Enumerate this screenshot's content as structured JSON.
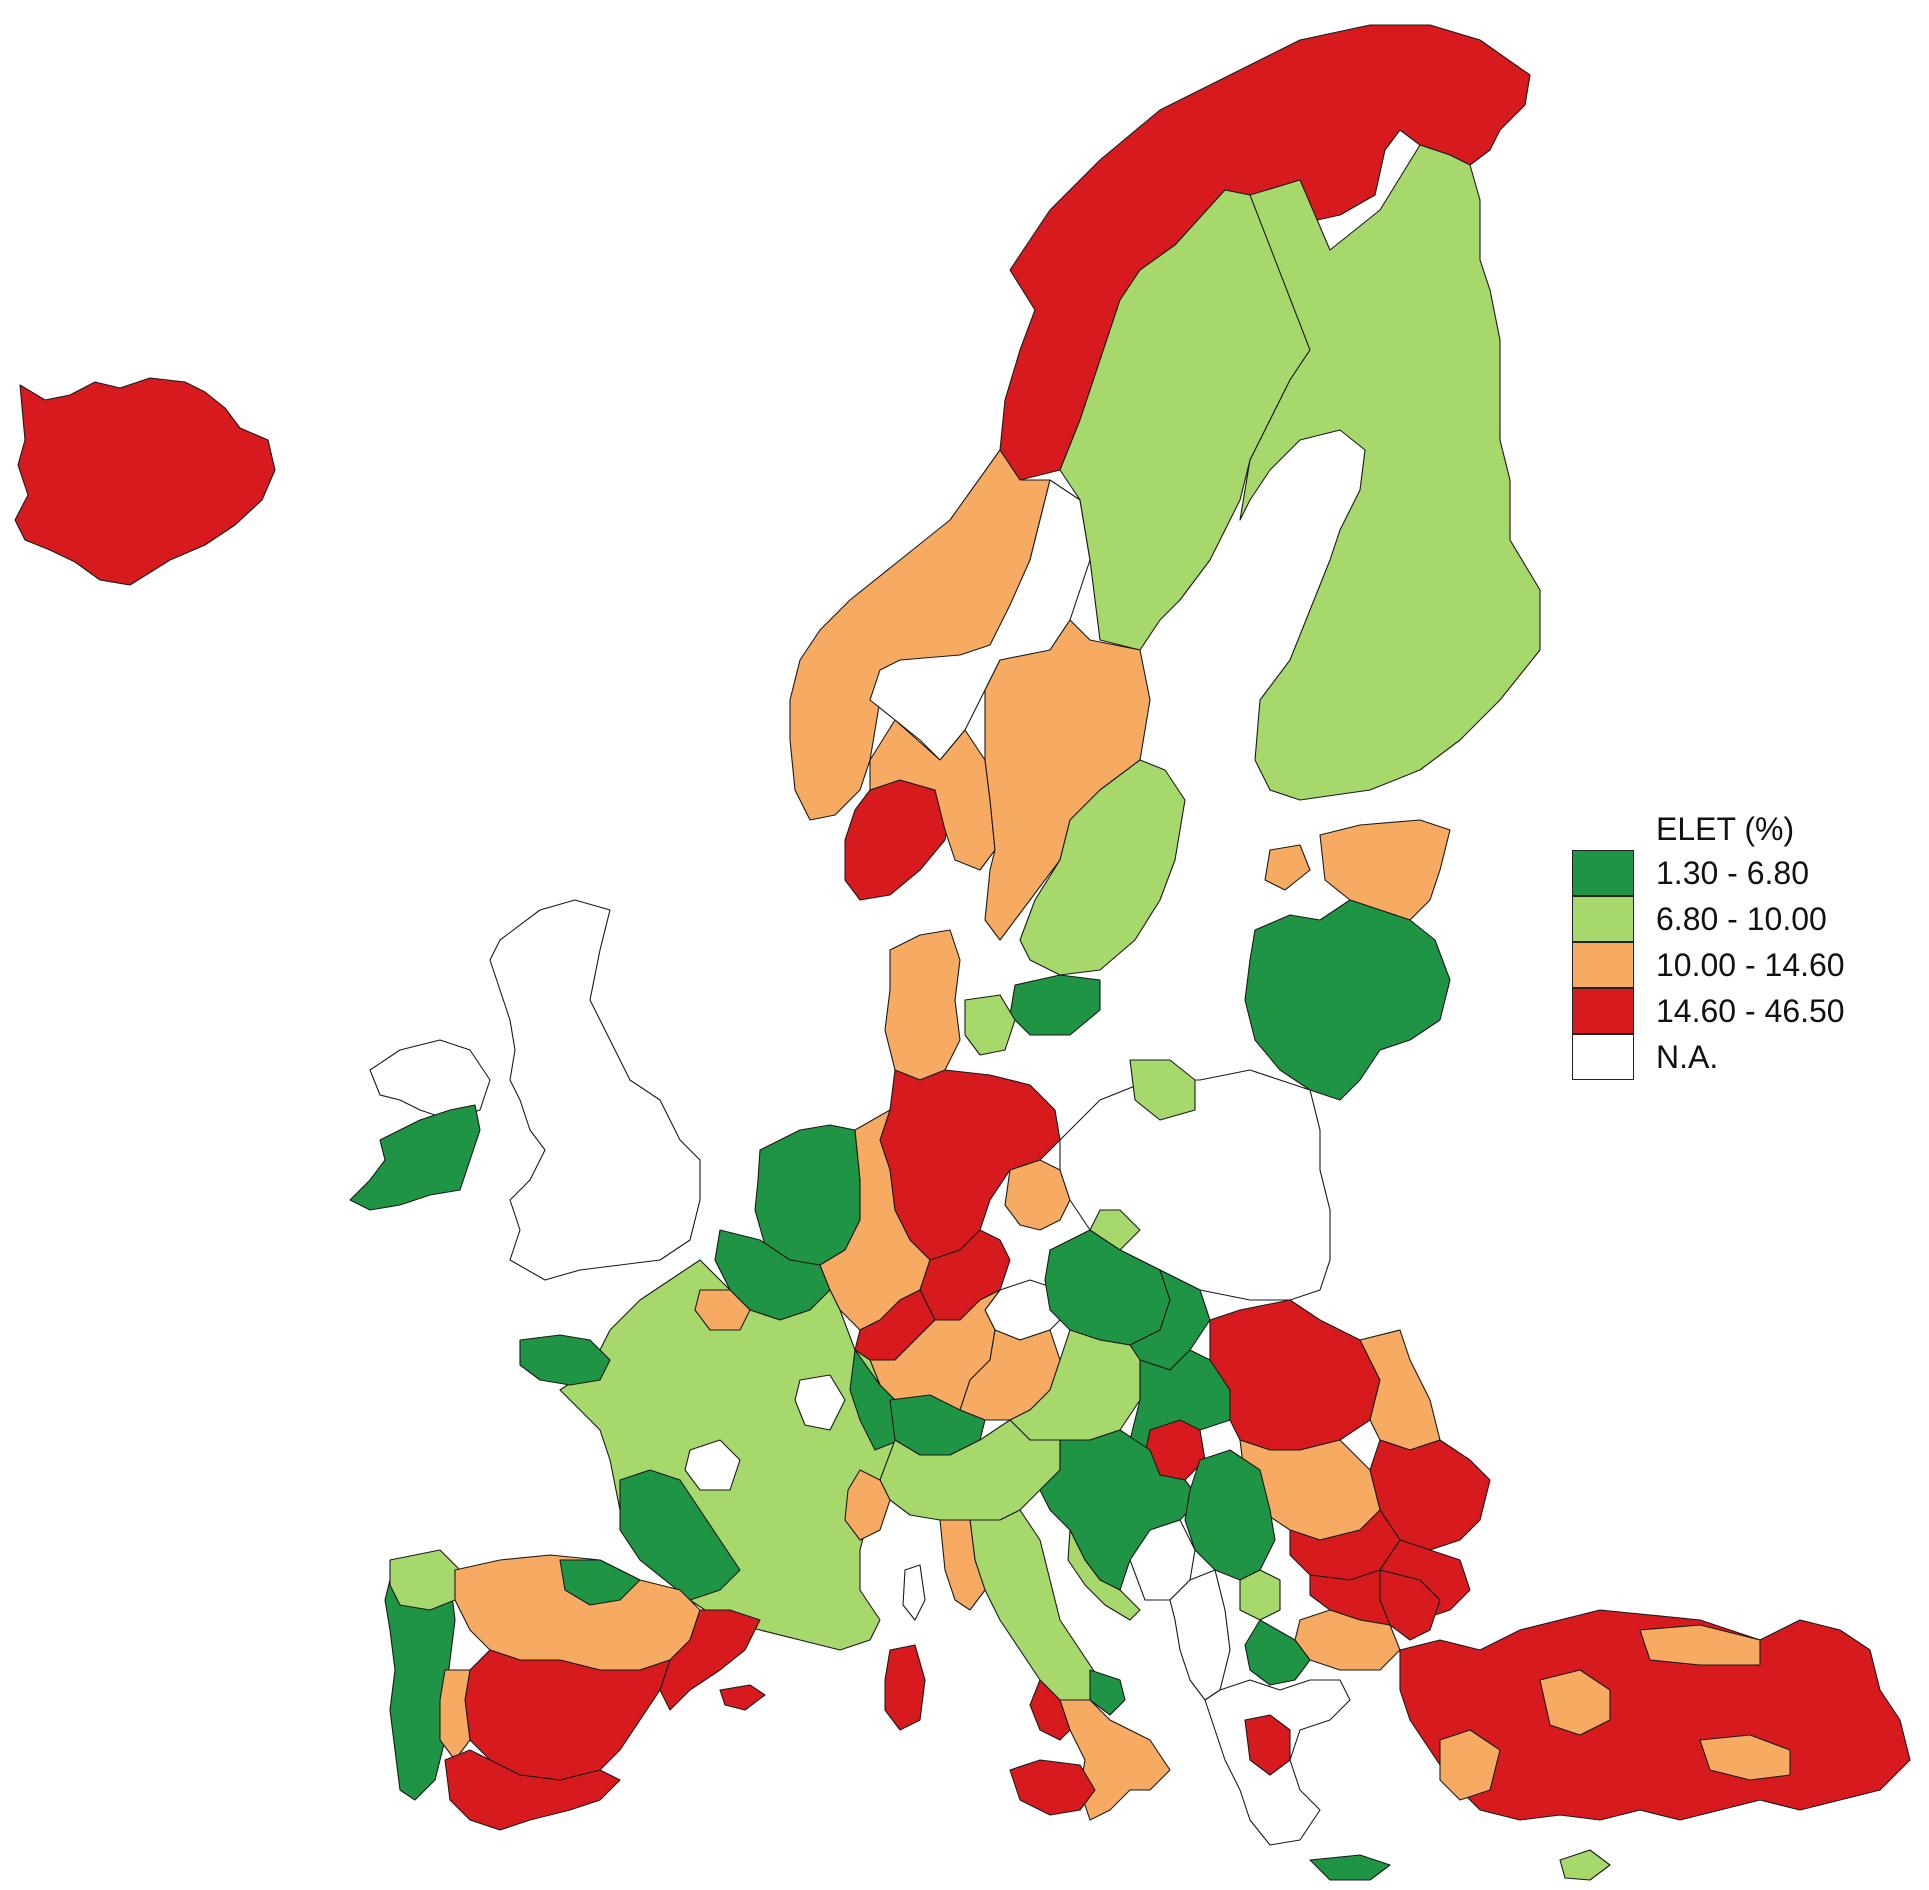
{
  "legend": {
    "title": "ELET (%)",
    "classes": [
      {
        "label": "1.30 - 6.80",
        "color": "#1f9444"
      },
      {
        "label": "6.80 - 10.00",
        "color": "#a6d86c"
      },
      {
        "label": "10.00 - 14.60",
        "color": "#f7ab62"
      },
      {
        "label": "14.60 - 46.50",
        "color": "#d71a1e"
      },
      {
        "label": "N.A.",
        "color": "#ffffff"
      }
    ]
  },
  "map_colors": {
    "low": "#1f9444",
    "lowmid": "#a6d86c",
    "highmid": "#f7ab62",
    "high": "#d71a1e",
    "na": "#ffffff"
  }
}
